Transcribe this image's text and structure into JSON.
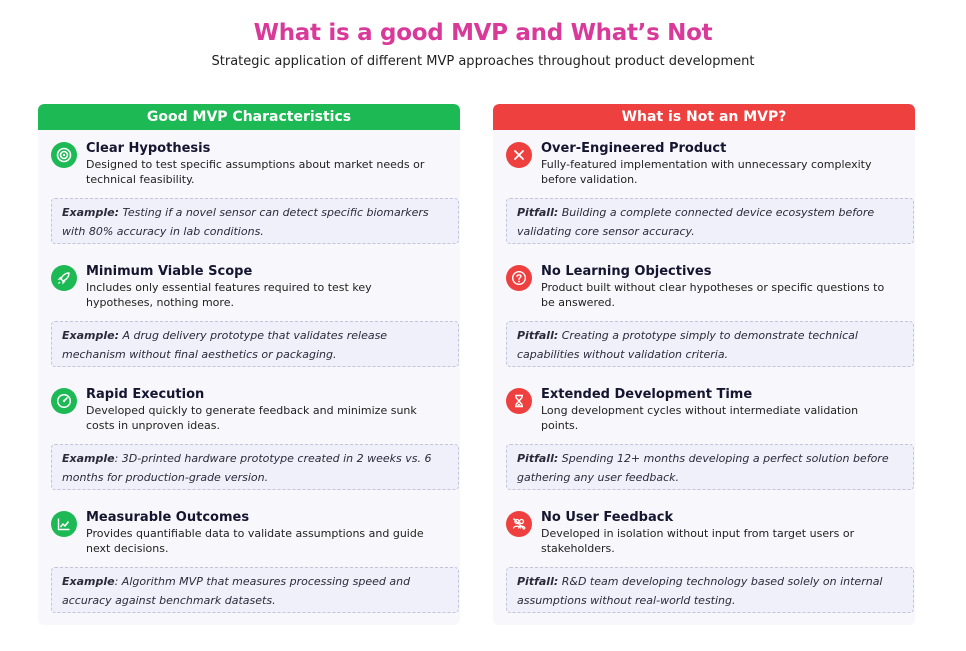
{
  "title": "What is a good MVP and What’s Not",
  "subtitle": "Strategic application of different MVP approaches throughout product development",
  "colors": {
    "title": "#d93a9a",
    "good": "#1db954",
    "bad": "#ef4040"
  },
  "good": {
    "header": "Good MVP Characteristics",
    "items": [
      {
        "icon": "target-icon",
        "title": "Clear Hypothesis",
        "desc": "Designed to test specific assumptions about market needs or technical feasibility.",
        "label": "Example:",
        "text": " Testing if a novel sensor can detect specific biomarkers with 80% accuracy in lab conditions."
      },
      {
        "icon": "rocket-icon",
        "title": "Minimum Viable Scope",
        "desc": "Includes only essential features required to test key hypotheses, nothing more.",
        "label": "Example:",
        "text": " A drug delivery prototype that validates release mechanism without final aesthetics or packaging."
      },
      {
        "icon": "speedometer-icon",
        "title": "Rapid Execution",
        "desc": "Developed quickly to generate feedback and minimize sunk costs in unproven ideas.",
        "label": "Example",
        "text": ": 3D-printed hardware prototype created in 2 weeks vs. 6 months for production-grade version."
      },
      {
        "icon": "chart-icon",
        "title": "Measurable Outcomes",
        "desc": "Provides quantifiable data to validate assumptions and guide next decisions.",
        "label": "Example",
        "text": ": Algorithm MVP that measures processing speed and accuracy against benchmark datasets."
      }
    ]
  },
  "bad": {
    "header": "What is Not an MVP?",
    "items": [
      {
        "icon": "x-icon",
        "title": "Over-Engineered Product",
        "desc": "Fully-featured implementation with unnecessary complexity before validation.",
        "label": "Pitfall:",
        "text": " Building a complete connected device ecosystem before validating core sensor accuracy."
      },
      {
        "icon": "question-icon",
        "title": "No Learning Objectives",
        "desc": "Product built without clear hypotheses or specific questions to be answered.",
        "label": "Pitfall:",
        "text": " Creating a prototype simply to demonstrate technical capabilities without validation criteria."
      },
      {
        "icon": "hourglass-icon",
        "title": "Extended Development Time",
        "desc": "Long development cycles without intermediate validation points.",
        "label": "Pitfall:",
        "text": " Spending 12+ months developing a perfect solution before gathering any user feedback."
      },
      {
        "icon": "no-users-icon",
        "title": "No User Feedback",
        "desc": "Developed in isolation without input from target users or stakeholders.",
        "label": "Pitfall:",
        "text": " R&D team developing technology based solely on internal assumptions without real-world testing."
      }
    ]
  }
}
